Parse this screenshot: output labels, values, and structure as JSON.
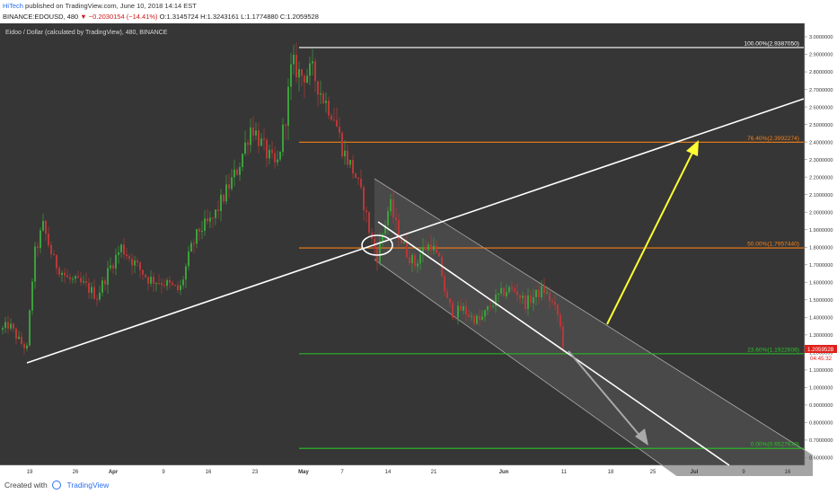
{
  "header": {
    "user": "HiTech",
    "published_text": "published on TradingView.com, June 10, 2018 14:14 EST",
    "symbol": "BINANCE:EDOUSD, 480",
    "change": "▼ −0.2030154 (−14.41%)",
    "ohlc": "O:1.3145724 H:1.3243161 L:1.1774880 C:1.2059528"
  },
  "footer": {
    "created_with": "Created with",
    "brand": "TradingView"
  },
  "chart_data": {
    "type": "candlestick",
    "title": "Eidoo / Dollar (calculated by TradingView), 480, BINANCE",
    "x_ticks": [
      "19",
      "26",
      "Apr",
      "9",
      "16",
      "23",
      "May",
      "7",
      "14",
      "21",
      "Jun",
      "11",
      "18",
      "25",
      "Jul",
      "9",
      "16"
    ],
    "y_ticks": [
      "3.0000000",
      "2.9000000",
      "2.8000000",
      "2.7000000",
      "2.6000000",
      "2.5000000",
      "2.4000000",
      "2.3000000",
      "2.2000000",
      "2.1000000",
      "2.0000000",
      "1.9000000",
      "1.8000000",
      "1.7000000",
      "1.6000000",
      "1.5000000",
      "1.4000000",
      "1.3000000",
      "1.2000000",
      "1.1000000",
      "1.0000000",
      "0.9000000",
      "0.8000000",
      "0.7000000",
      "0.6000000"
    ],
    "ylim": [
      0.58,
      3.05
    ],
    "last_price": "1.2059528",
    "countdown": "04:45:32",
    "fib_levels": [
      {
        "label": "100.00%(2.9387050)",
        "value": 2.938705,
        "color": "#ffffff"
      },
      {
        "label": "76.40%(2.3992274)",
        "value": 2.3992274,
        "color": "#f57f17"
      },
      {
        "label": "50.00%(1.7957440)",
        "value": 1.795744,
        "color": "#f57f17"
      },
      {
        "label": "23.60%(1.1922606)",
        "value": 1.1922606,
        "color": "#26c326"
      },
      {
        "label": "0.00%(0.6527830)",
        "value": 0.652783,
        "color": "#26c326"
      }
    ],
    "colors": {
      "background": "#363636",
      "up": "#3ca03c",
      "down": "#b83838"
    }
  }
}
